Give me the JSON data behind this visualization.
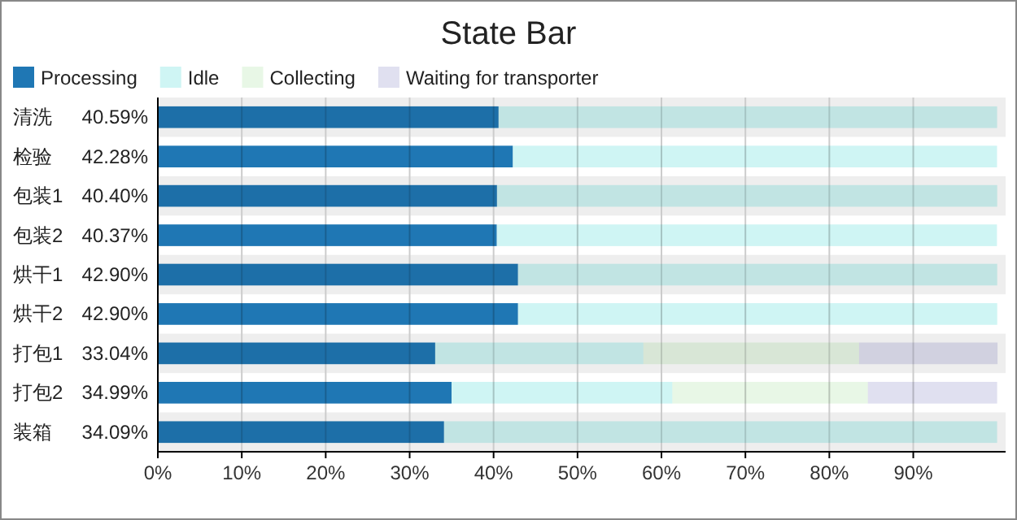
{
  "chart_data": {
    "type": "bar",
    "title": "State Bar",
    "orientation": "horizontal",
    "stacked": true,
    "grid": "x",
    "legend": "top left",
    "categories": [
      "清洗",
      "检验",
      "包装1",
      "包装2",
      "烘干1",
      "烘干2",
      "打包1",
      "打包2",
      "装箱"
    ],
    "xlim": [
      0,
      101
    ],
    "xticks": [
      {
        "value": 0,
        "label": "0%"
      },
      {
        "value": 10,
        "label": "10%"
      },
      {
        "value": 20,
        "label": "20%"
      },
      {
        "value": 30,
        "label": "30%"
      },
      {
        "value": 40,
        "label": "40%"
      },
      {
        "value": 50,
        "label": "50%"
      },
      {
        "value": 60,
        "label": "60%"
      },
      {
        "value": 70,
        "label": "70%"
      },
      {
        "value": 80,
        "label": "80%"
      },
      {
        "value": 90,
        "label": "90%"
      }
    ],
    "series": [
      {
        "name": "Processing",
        "color": "#1f77b4",
        "values": [
          40.59,
          42.28,
          40.4,
          40.37,
          42.9,
          42.9,
          33.04,
          34.99,
          34.09
        ],
        "value_labels": [
          "40.59%",
          "42.28%",
          "40.40%",
          "40.37%",
          "42.90%",
          "42.90%",
          "33.04%",
          "34.99%",
          "34.09%"
        ]
      },
      {
        "name": "Idle",
        "color": "#cff5f4",
        "values": [
          59.4,
          57.7,
          59.6,
          59.6,
          57.1,
          57.1,
          24.8,
          26.3,
          65.9
        ]
      },
      {
        "name": "Collecting",
        "color": "#e8f7e6",
        "values": [
          0,
          0,
          0,
          0,
          0,
          0,
          25.7,
          23.3,
          0
        ]
      },
      {
        "name": "Waiting for transporter",
        "color": "#e0e0f0",
        "values": [
          0,
          0,
          0,
          0,
          0,
          0,
          16.5,
          15.4,
          0
        ]
      }
    ]
  }
}
